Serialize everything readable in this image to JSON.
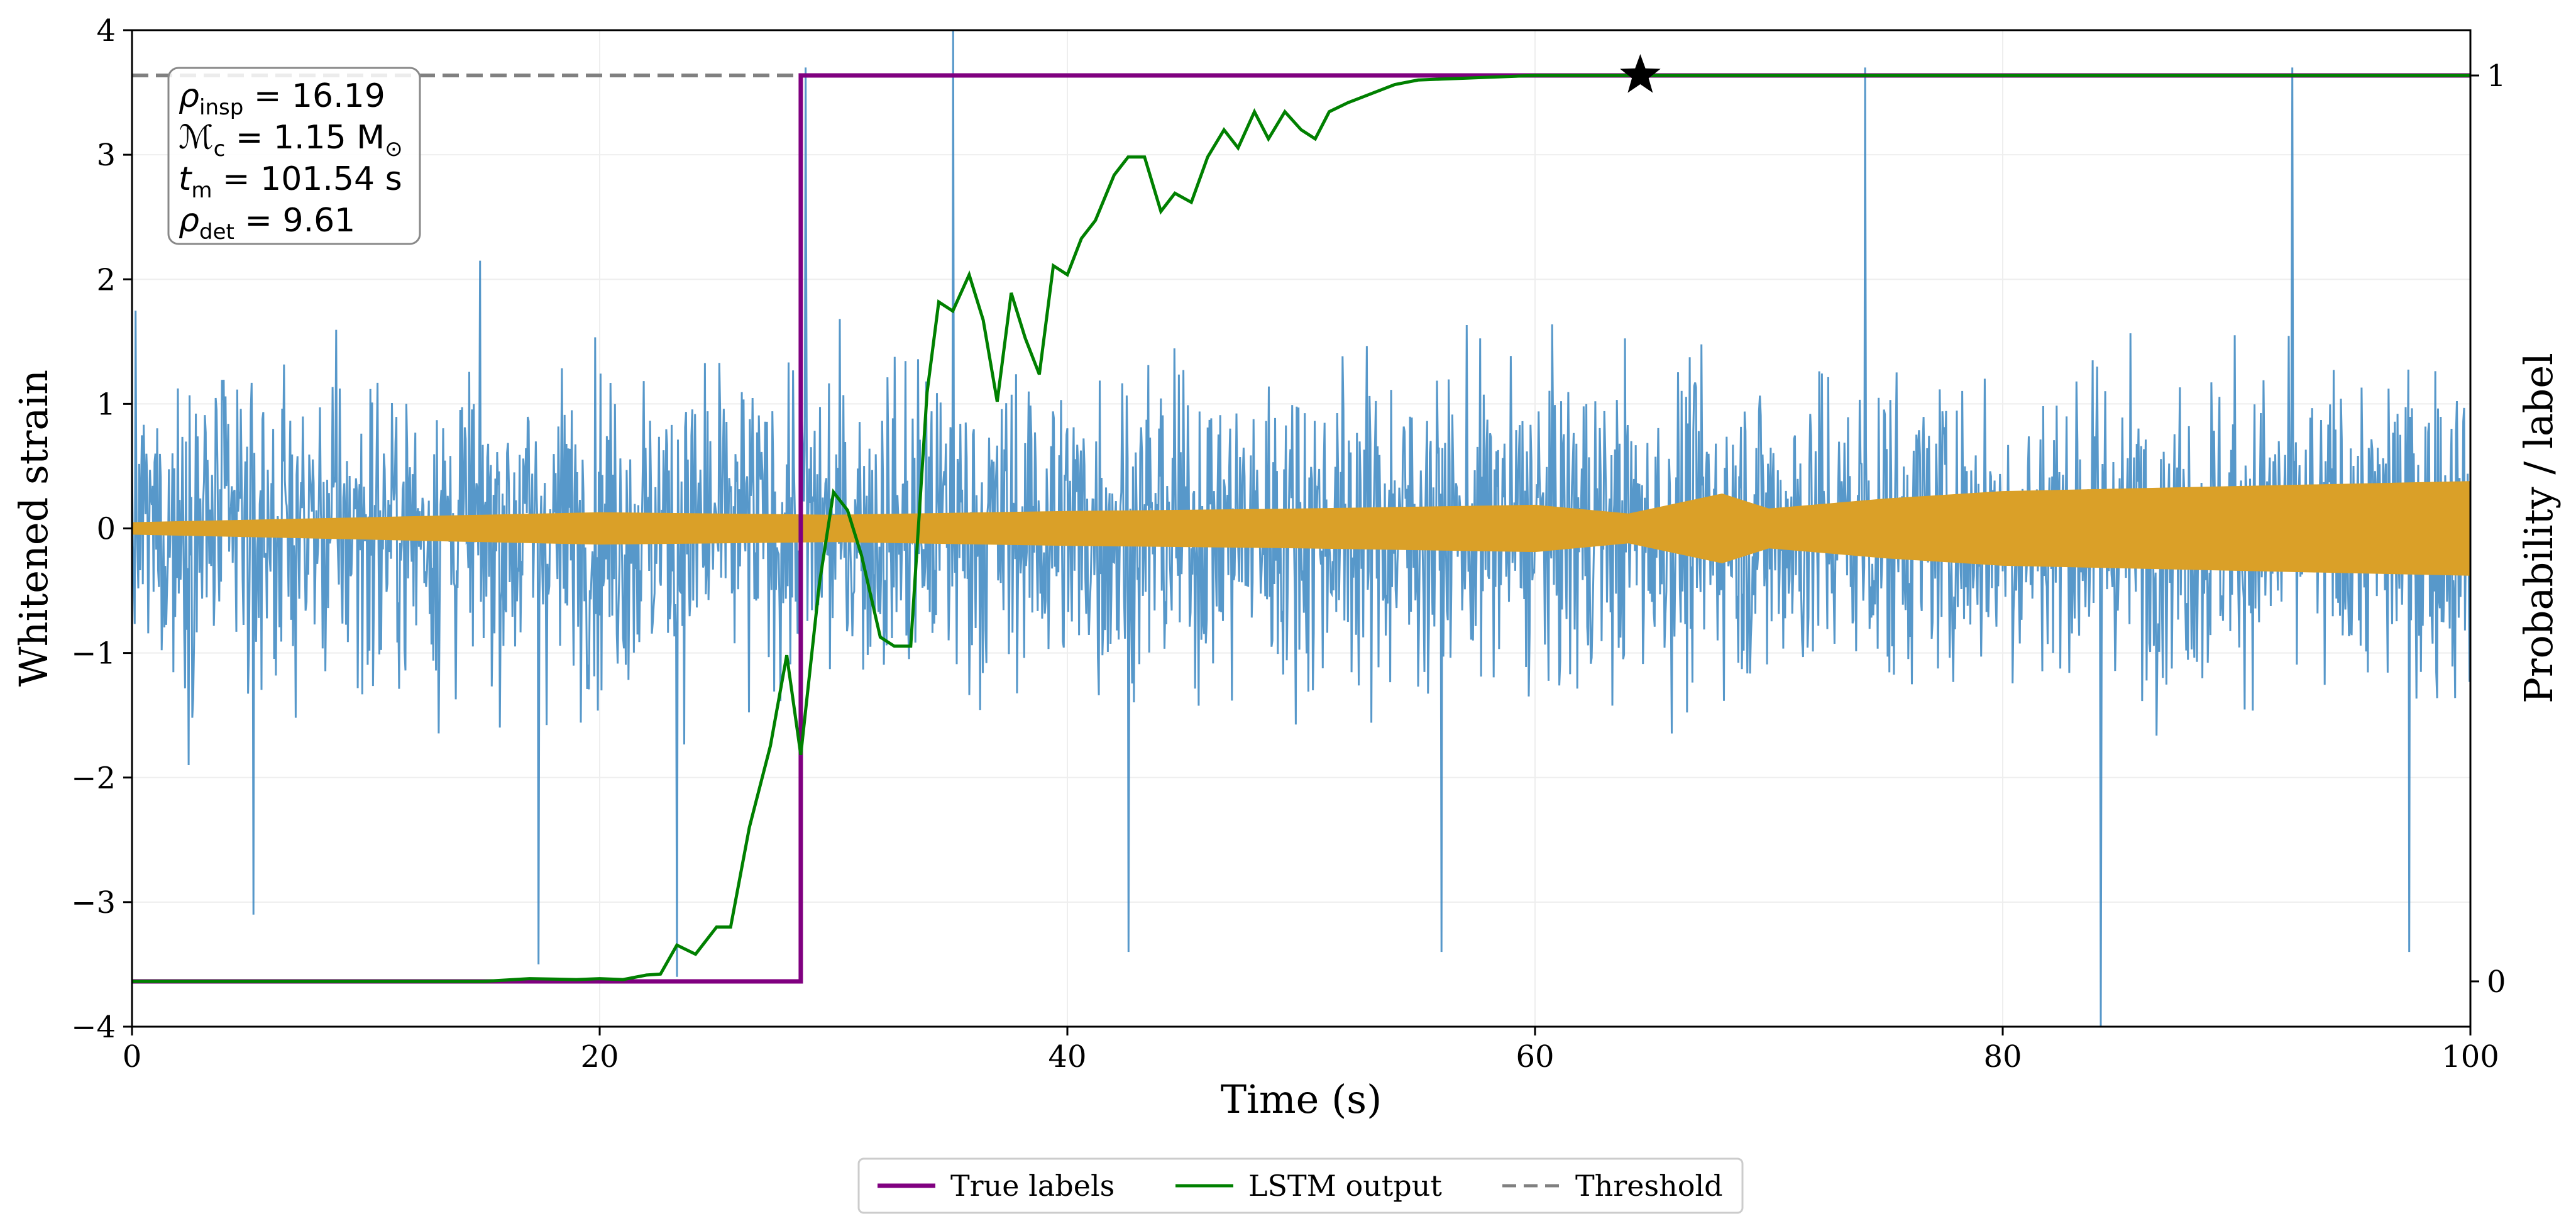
{
  "chart_data": {
    "type": "line",
    "xlabel": "Time (s)",
    "ylabel": "Whitened strain",
    "y2label": "Probability / label",
    "xlim": [
      0,
      100
    ],
    "ylim": [
      -4,
      4
    ],
    "y2lim": [
      -0.05,
      1.05
    ],
    "xticks": [
      0,
      20,
      40,
      60,
      80,
      100
    ],
    "yticks": [
      -4,
      -3,
      -2,
      -1,
      0,
      1,
      2,
      3,
      4
    ],
    "y2ticks": [
      0,
      1
    ],
    "grid": true,
    "annotation": {
      "lines": [
        {
          "sym": "ρ",
          "sub": "insp",
          "eq": " = 16.19"
        },
        {
          "sym": "ℳ",
          "sub": "c",
          "eq": " = 1.15 M",
          "tail": "⊙"
        },
        {
          "sym": "t",
          "sub": "m",
          "eq": " = 101.54 s"
        },
        {
          "sym": "ρ",
          "sub": "det",
          "eq": " = 9.61"
        }
      ],
      "placement": "top-left"
    },
    "legend": {
      "placement": "bottom-center",
      "entries": [
        {
          "label": "True labels",
          "color": "#800080",
          "style": "solid"
        },
        {
          "label": "LSTM output",
          "color": "#008000",
          "style": "solid"
        },
        {
          "label": "Threshold",
          "color": "#808080",
          "style": "dashed"
        }
      ]
    },
    "series": [
      {
        "name": "Whitened strain (noise + signal)",
        "color": "#3a86c1",
        "typical_amplitude": 2.0,
        "extremes": [
          {
            "x": 28.8,
            "y": 3.7
          },
          {
            "x": 35.1,
            "y": 4.0
          },
          {
            "x": 74.1,
            "y": 3.7
          },
          {
            "x": 92.4,
            "y": 3.7
          },
          {
            "x": 84.2,
            "y": -4.0
          },
          {
            "x": 23.3,
            "y": -3.6
          },
          {
            "x": 17.4,
            "y": -3.5
          },
          {
            "x": 42.6,
            "y": -3.4
          },
          {
            "x": 56.0,
            "y": -3.4
          },
          {
            "x": 97.4,
            "y": -3.4
          },
          {
            "x": 5.2,
            "y": -3.1
          }
        ]
      },
      {
        "name": "Injected signal",
        "color": "#daa028",
        "x": [
          0,
          10,
          20,
          30,
          40,
          50,
          60,
          64,
          66,
          68,
          70,
          75,
          80,
          90,
          100
        ],
        "envelope": [
          0.05,
          0.09,
          0.13,
          0.11,
          0.14,
          0.16,
          0.19,
          0.12,
          0.2,
          0.28,
          0.16,
          0.24,
          0.3,
          0.34,
          0.38
        ]
      },
      {
        "name": "True labels",
        "color": "#800080",
        "x": [
          0,
          28.6,
          28.6,
          100
        ],
        "y": [
          0,
          0,
          1,
          1
        ]
      },
      {
        "name": "LSTM output",
        "color": "#008000",
        "x": [
          0,
          15,
          17,
          19,
          20,
          21,
          22,
          22.6,
          23.3,
          24.1,
          25,
          25.6,
          26.4,
          27.3,
          28,
          28.6,
          29.4,
          30,
          30.6,
          31.2,
          32,
          32.6,
          33.3,
          34,
          34.5,
          35.1,
          35.8,
          36.4,
          37,
          37.6,
          38.2,
          38.8,
          39.4,
          40,
          40.6,
          41.2,
          42,
          42.6,
          43.3,
          44,
          44.6,
          45.3,
          46,
          46.7,
          47.3,
          48,
          48.6,
          49.3,
          50,
          50.6,
          51.2,
          52,
          53,
          54,
          55,
          56,
          57,
          58,
          59,
          60,
          61,
          62,
          63,
          64,
          100
        ],
        "y": [
          0,
          0,
          0.003,
          0.002,
          0.003,
          0.002,
          0.007,
          0.008,
          0.04,
          0.03,
          0.06,
          0.06,
          0.17,
          0.26,
          0.36,
          0.25,
          0.44,
          0.54,
          0.52,
          0.47,
          0.38,
          0.37,
          0.37,
          0.65,
          0.75,
          0.74,
          0.78,
          0.73,
          0.64,
          0.76,
          0.71,
          0.67,
          0.79,
          0.78,
          0.82,
          0.84,
          0.89,
          0.91,
          0.91,
          0.85,
          0.87,
          0.86,
          0.91,
          0.94,
          0.92,
          0.96,
          0.93,
          0.96,
          0.94,
          0.93,
          0.96,
          0.97,
          0.98,
          0.99,
          0.995,
          0.996,
          0.997,
          0.998,
          0.999,
          1.0,
          1.0,
          1.0,
          1.0,
          1.0,
          1.0
        ]
      },
      {
        "name": "Threshold",
        "color": "#808080",
        "y": 1.0
      }
    ],
    "detection_marker": {
      "x": 64.5,
      "y": 1.0,
      "symbol": "star"
    }
  }
}
